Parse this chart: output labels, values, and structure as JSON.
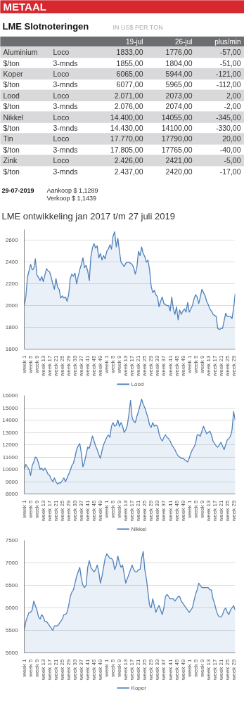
{
  "chart_data": [
    {
      "type": "other",
      "title": "LME Slotnoteringen",
      "subtitle": "IN US$ PER TON",
      "categories": [
        null,
        null,
        "19-jul",
        "26-jul",
        "plus/min"
      ],
      "cell_labels": [
        [
          "Aluminium",
          "Loco",
          "1833,00",
          "1776,00",
          "-57,00"
        ],
        [
          "$/ton",
          "3-mnds",
          "1855,00",
          "1804,00",
          "-51,00"
        ],
        [
          "Koper",
          "Loco",
          "6065,00",
          "5944,00",
          "-121,00"
        ],
        [
          "$/ton",
          "3-mnds",
          "6077,00",
          "5965,00",
          "-112,00"
        ],
        [
          "Lood",
          "Loco",
          "2.071,00",
          "2073,00",
          "2,00"
        ],
        [
          "$/ton",
          "3-mnds",
          "2.076,00",
          "2074,00",
          "-2,00"
        ],
        [
          "Nikkel",
          "Loco",
          "14.400,00",
          "14055,00",
          "-345,00"
        ],
        [
          "$/ton",
          "3-mnds",
          "14.430,00",
          "14100,00",
          "-330,00"
        ],
        [
          "Tin",
          "Loco",
          "17.770,00",
          "17790,00",
          "20,00"
        ],
        [
          "$/ton",
          "3-mnds",
          "17.805,00",
          "17765,00",
          "-40,00"
        ],
        [
          "Zink",
          "Loco",
          "2.426,00",
          "2421,00",
          "-5,00"
        ],
        [
          "$/ton",
          "3-mnds",
          "2.437,00",
          "2420,00",
          "-17,00"
        ]
      ],
      "annotations": [
        "METAAL",
        "29-07-2019",
        "Aankoop $  1,1289",
        "Verkoop $  1,1439",
        "LME ontwikkeling jan 2017 t/m 27 juli 2019"
      ]
    },
    {
      "type": "area",
      "ylim": [
        1600,
        2700
      ],
      "yticks": [
        1600,
        1800,
        2000,
        2200,
        2400,
        2600
      ],
      "grid": "y",
      "legend": "bottom",
      "categories": [
        "week 1",
        null,
        null,
        null,
        "week 5",
        null,
        null,
        null,
        "week 9",
        null,
        null,
        null,
        "week 13",
        null,
        null,
        null,
        "week 17",
        null,
        null,
        null,
        "week 21",
        null,
        null,
        null,
        "week 25",
        null,
        null,
        null,
        "week 29",
        null,
        null,
        null,
        "week 33",
        null,
        null,
        null,
        "week 37",
        null,
        null,
        null,
        "week 41",
        null,
        null,
        null,
        "week 45",
        null,
        null,
        null,
        "week 49",
        null,
        null,
        null,
        "week 1",
        null,
        null,
        null,
        "week 5",
        null,
        null,
        null,
        "week 9",
        null,
        null,
        null,
        "week 13",
        null,
        null,
        null,
        "week 17",
        null,
        null,
        null,
        "week 21",
        null,
        null,
        null,
        "week 25",
        null,
        null,
        null,
        "week 29",
        null,
        null,
        null,
        "week 33",
        null,
        null,
        null,
        "week 37",
        null,
        null,
        null,
        "week 41",
        null,
        null,
        null,
        "week 45",
        null,
        null,
        null,
        "week 49",
        null,
        null,
        null,
        "week 1",
        null,
        null,
        null,
        "week 5",
        null,
        null,
        null,
        "week 9",
        null,
        null,
        null,
        "week 13",
        null,
        null,
        null,
        "week 17",
        null,
        null,
        null,
        "week 21",
        null,
        null,
        null,
        "week 25",
        null,
        null,
        null,
        "week 29",
        null
      ],
      "series": [
        {
          "name": "Lood",
          "color": "#4f81bd",
          "values": [
            2000,
            2080,
            2260,
            2320,
            2380,
            2330,
            2340,
            2430,
            2280,
            2260,
            2230,
            2270,
            2220,
            2280,
            2340,
            2320,
            2310,
            2260,
            2200,
            2150,
            2250,
            2170,
            2150,
            2070,
            2090,
            2070,
            2080,
            2040,
            2100,
            2250,
            2290,
            2270,
            2300,
            2200,
            2270,
            2330,
            2380,
            2440,
            2350,
            2370,
            2320,
            2230,
            2450,
            2530,
            2570,
            2530,
            2550,
            2440,
            2480,
            2420,
            2460,
            2430,
            2500,
            2520,
            2560,
            2520,
            2640,
            2680,
            2540,
            2620,
            2500,
            2400,
            2380,
            2360,
            2390,
            2400,
            2400,
            2390,
            2380,
            2350,
            2290,
            2350,
            2500,
            2460,
            2540,
            2480,
            2450,
            2400,
            2420,
            2330,
            2180,
            2120,
            2140,
            2100,
            2080,
            1990,
            2040,
            2080,
            2020,
            2010,
            2000,
            2000,
            1950,
            2080,
            1970,
            1920,
            1990,
            1870,
            1960,
            1920,
            1950,
            1970,
            1940,
            2030,
            1940,
            1970,
            2000,
            2060,
            2100,
            2080,
            2020,
            2080,
            2150,
            2120,
            2090,
            2040,
            2010,
            1970,
            1950,
            1920,
            1910,
            1900,
            1790,
            1780,
            1790,
            1790,
            1860,
            1930,
            1900,
            1900,
            1900,
            1880,
            1980,
            2110
          ]
        }
      ]
    },
    {
      "type": "area",
      "ylim": [
        8000,
        16000
      ],
      "yticks": [
        8000,
        9000,
        10000,
        11000,
        12000,
        13000,
        14000,
        15000,
        16000
      ],
      "grid": "y",
      "legend": "bottom",
      "categories": [
        "week 1",
        null,
        null,
        null,
        "week 5",
        null,
        null,
        null,
        "week 9",
        null,
        null,
        null,
        "week 13",
        null,
        null,
        null,
        "week 17",
        null,
        null,
        null,
        "week 21",
        null,
        null,
        null,
        "week 25",
        null,
        null,
        null,
        "week 29",
        null,
        null,
        null,
        "week 33",
        null,
        null,
        null,
        "week 37",
        null,
        null,
        null,
        "week 41",
        null,
        null,
        null,
        "week 45",
        null,
        null,
        null,
        "week 49",
        null,
        null,
        null,
        "week 1",
        null,
        null,
        null,
        "week 5",
        null,
        null,
        null,
        "week 9",
        null,
        null,
        null,
        "week 13",
        null,
        null,
        null,
        "week 17",
        null,
        null,
        null,
        "week 21",
        null,
        null,
        null,
        "week 25",
        null,
        null,
        null,
        "week 29",
        null,
        null,
        null,
        "week 33",
        null,
        null,
        null,
        "week 37",
        null,
        null,
        null,
        "week 41",
        null,
        null,
        null,
        "week 45",
        null,
        null,
        null,
        "week 49",
        null,
        null,
        null,
        "week 1",
        null,
        null,
        null,
        "week 5",
        null,
        null,
        null,
        "week 9",
        null,
        null,
        null,
        "week 13",
        null,
        null,
        null,
        "week 17",
        null,
        null,
        null,
        "week 21",
        null,
        null,
        null,
        "week 25",
        null,
        null,
        null,
        "week 29",
        null
      ],
      "series": [
        {
          "name": "Nikkel",
          "color": "#4f81bd",
          "values": [
            10000,
            10400,
            10200,
            10000,
            9500,
            10300,
            10600,
            11000,
            10900,
            10500,
            10000,
            10100,
            9900,
            10100,
            9900,
            9600,
            9500,
            9200,
            9000,
            9300,
            9000,
            8800,
            8900,
            8900,
            9100,
            9300,
            9000,
            9300,
            9600,
            9900,
            10300,
            10500,
            11000,
            11600,
            11900,
            12100,
            11300,
            10200,
            10600,
            11200,
            11800,
            11700,
            12200,
            12700,
            12300,
            11900,
            11600,
            11200,
            10900,
            11500,
            12000,
            12300,
            12600,
            12800,
            12600,
            13500,
            13800,
            13500,
            13600,
            14000,
            13500,
            13800,
            13500,
            13000,
            13200,
            13600,
            14500,
            15600,
            14200,
            13900,
            13800,
            14300,
            14700,
            15200,
            15700,
            15300,
            15000,
            14600,
            14200,
            13600,
            13400,
            13800,
            13500,
            13600,
            13500,
            12900,
            12500,
            12300,
            12600,
            12800,
            12600,
            12500,
            12300,
            12000,
            11800,
            11600,
            11300,
            11100,
            11000,
            10900,
            10900,
            10800,
            10700,
            10600,
            10900,
            11300,
            11600,
            11800,
            12100,
            12800,
            12800,
            12700,
            13100,
            13500,
            13200,
            12900,
            13000,
            13100,
            12800,
            12300,
            12100,
            11900,
            11800,
            12000,
            12200,
            11900,
            11600,
            12000,
            12400,
            12500,
            12700,
            13200,
            14700,
            14000
          ]
        }
      ]
    },
    {
      "type": "area",
      "ylim": [
        5000,
        7500
      ],
      "yticks": [
        5000,
        5500,
        6000,
        6500,
        7000,
        7500
      ],
      "grid": "y",
      "legend": "bottom",
      "categories": [
        "week 1",
        null,
        null,
        null,
        "week 5",
        null,
        null,
        null,
        "week 9",
        null,
        null,
        null,
        "week 13",
        null,
        null,
        null,
        "week 17",
        null,
        null,
        null,
        "week 21",
        null,
        null,
        null,
        "week 25",
        null,
        null,
        null,
        "week 29",
        null,
        null,
        null,
        "week 33",
        null,
        null,
        null,
        "week 37",
        null,
        null,
        null,
        "week 41",
        null,
        null,
        null,
        "week 45",
        null,
        null,
        null,
        "week 49",
        null,
        null,
        null,
        "week 1",
        null,
        null,
        null,
        "week 5",
        null,
        null,
        null,
        "week 9",
        null,
        null,
        null,
        "week 13",
        null,
        null,
        null,
        "week 17",
        null,
        null,
        null,
        "week 21",
        null,
        null,
        null,
        "week 25",
        null,
        null,
        null,
        "week 29",
        null,
        null,
        null,
        "week 33",
        null,
        null,
        null,
        "week 37",
        null,
        null,
        null,
        "week 41",
        null,
        null,
        null,
        "week 45",
        null,
        null,
        null,
        "week 49",
        null,
        null,
        null,
        "week 1",
        null,
        null,
        null,
        "week 5",
        null,
        null,
        null,
        "week 9",
        null,
        null,
        null,
        "week 13",
        null,
        null,
        null,
        "week 17",
        null,
        null,
        null,
        "week 21",
        null,
        null,
        null,
        "week 25",
        null,
        null,
        null,
        "week 29",
        null
      ],
      "series": [
        {
          "name": "Koper",
          "color": "#4f81bd",
          "values": [
            5500,
            5700,
            5800,
            5900,
            5900,
            5950,
            6150,
            6050,
            5950,
            5800,
            5750,
            5850,
            5800,
            5700,
            5700,
            5650,
            5600,
            5550,
            5500,
            5600,
            5600,
            5600,
            5650,
            5700,
            5750,
            5850,
            5850,
            5900,
            6050,
            6250,
            6350,
            6400,
            6550,
            6700,
            6800,
            6900,
            6650,
            6500,
            6450,
            6500,
            6900,
            7050,
            6900,
            6850,
            6800,
            6850,
            6950,
            6800,
            6550,
            6700,
            6900,
            7100,
            7200,
            7150,
            7100,
            7100,
            7050,
            6850,
            6950,
            7150,
            7000,
            6900,
            6950,
            6750,
            6550,
            6650,
            6750,
            6850,
            6950,
            6850,
            6800,
            6800,
            6850,
            6850,
            7100,
            7250,
            6850,
            6650,
            6350,
            6050,
            6000,
            6200,
            6050,
            5900,
            6000,
            6050,
            5950,
            5850,
            6000,
            6250,
            6300,
            6250,
            6200,
            6200,
            6200,
            6150,
            6200,
            6250,
            6250,
            6150,
            6100,
            6050,
            6000,
            5950,
            5900,
            5950,
            6000,
            6150,
            6300,
            6400,
            6550,
            6500,
            6450,
            6450,
            6450,
            6450,
            6450,
            6400,
            6400,
            6200,
            6100,
            5950,
            5850,
            5800,
            5800,
            5850,
            5950,
            6000,
            5900,
            5850,
            5950,
            6000,
            6050,
            5950
          ]
        }
      ]
    }
  ]
}
